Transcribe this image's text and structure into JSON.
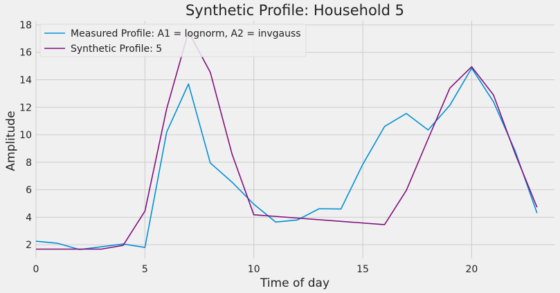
{
  "chart_data": {
    "type": "line",
    "title": "Synthetic Profile: Household 5",
    "xlabel": "Time of day",
    "ylabel": "Amplitude",
    "xlim": [
      0,
      23.8
    ],
    "ylim": [
      1.0,
      18.3
    ],
    "xticks": [
      0,
      5,
      10,
      15,
      20
    ],
    "yticks": [
      2,
      4,
      6,
      8,
      10,
      12,
      14,
      16,
      18
    ],
    "grid": true,
    "legend_position": "top-left",
    "series": [
      {
        "name": "Measured Profile: A1 = lognorm, A2 = invgauss",
        "color": "#008fd5",
        "x": [
          0,
          1,
          2,
          3,
          4,
          5,
          6,
          7,
          8,
          9,
          10,
          11,
          12,
          13,
          14,
          15,
          16,
          17,
          18,
          19,
          20,
          21,
          22,
          23
        ],
        "values": [
          2.25,
          2.1,
          1.65,
          1.85,
          2.05,
          1.8,
          10.2,
          13.7,
          7.95,
          6.55,
          4.95,
          3.65,
          3.8,
          4.62,
          4.6,
          7.85,
          10.6,
          11.55,
          10.35,
          12.15,
          14.85,
          12.4,
          8.8,
          4.3
        ]
      },
      {
        "name": "Synthetic Profile: 5",
        "color": "#810f7c",
        "x": [
          0,
          1,
          2,
          3,
          4,
          5,
          6,
          7,
          8,
          9,
          10,
          16,
          17,
          18,
          19,
          20,
          21,
          22,
          23
        ],
        "values": [
          1.68,
          1.68,
          1.68,
          1.68,
          1.95,
          4.45,
          11.9,
          17.5,
          14.55,
          8.6,
          4.18,
          3.46,
          5.95,
          9.7,
          13.4,
          14.95,
          12.9,
          8.6,
          4.72
        ]
      }
    ]
  }
}
